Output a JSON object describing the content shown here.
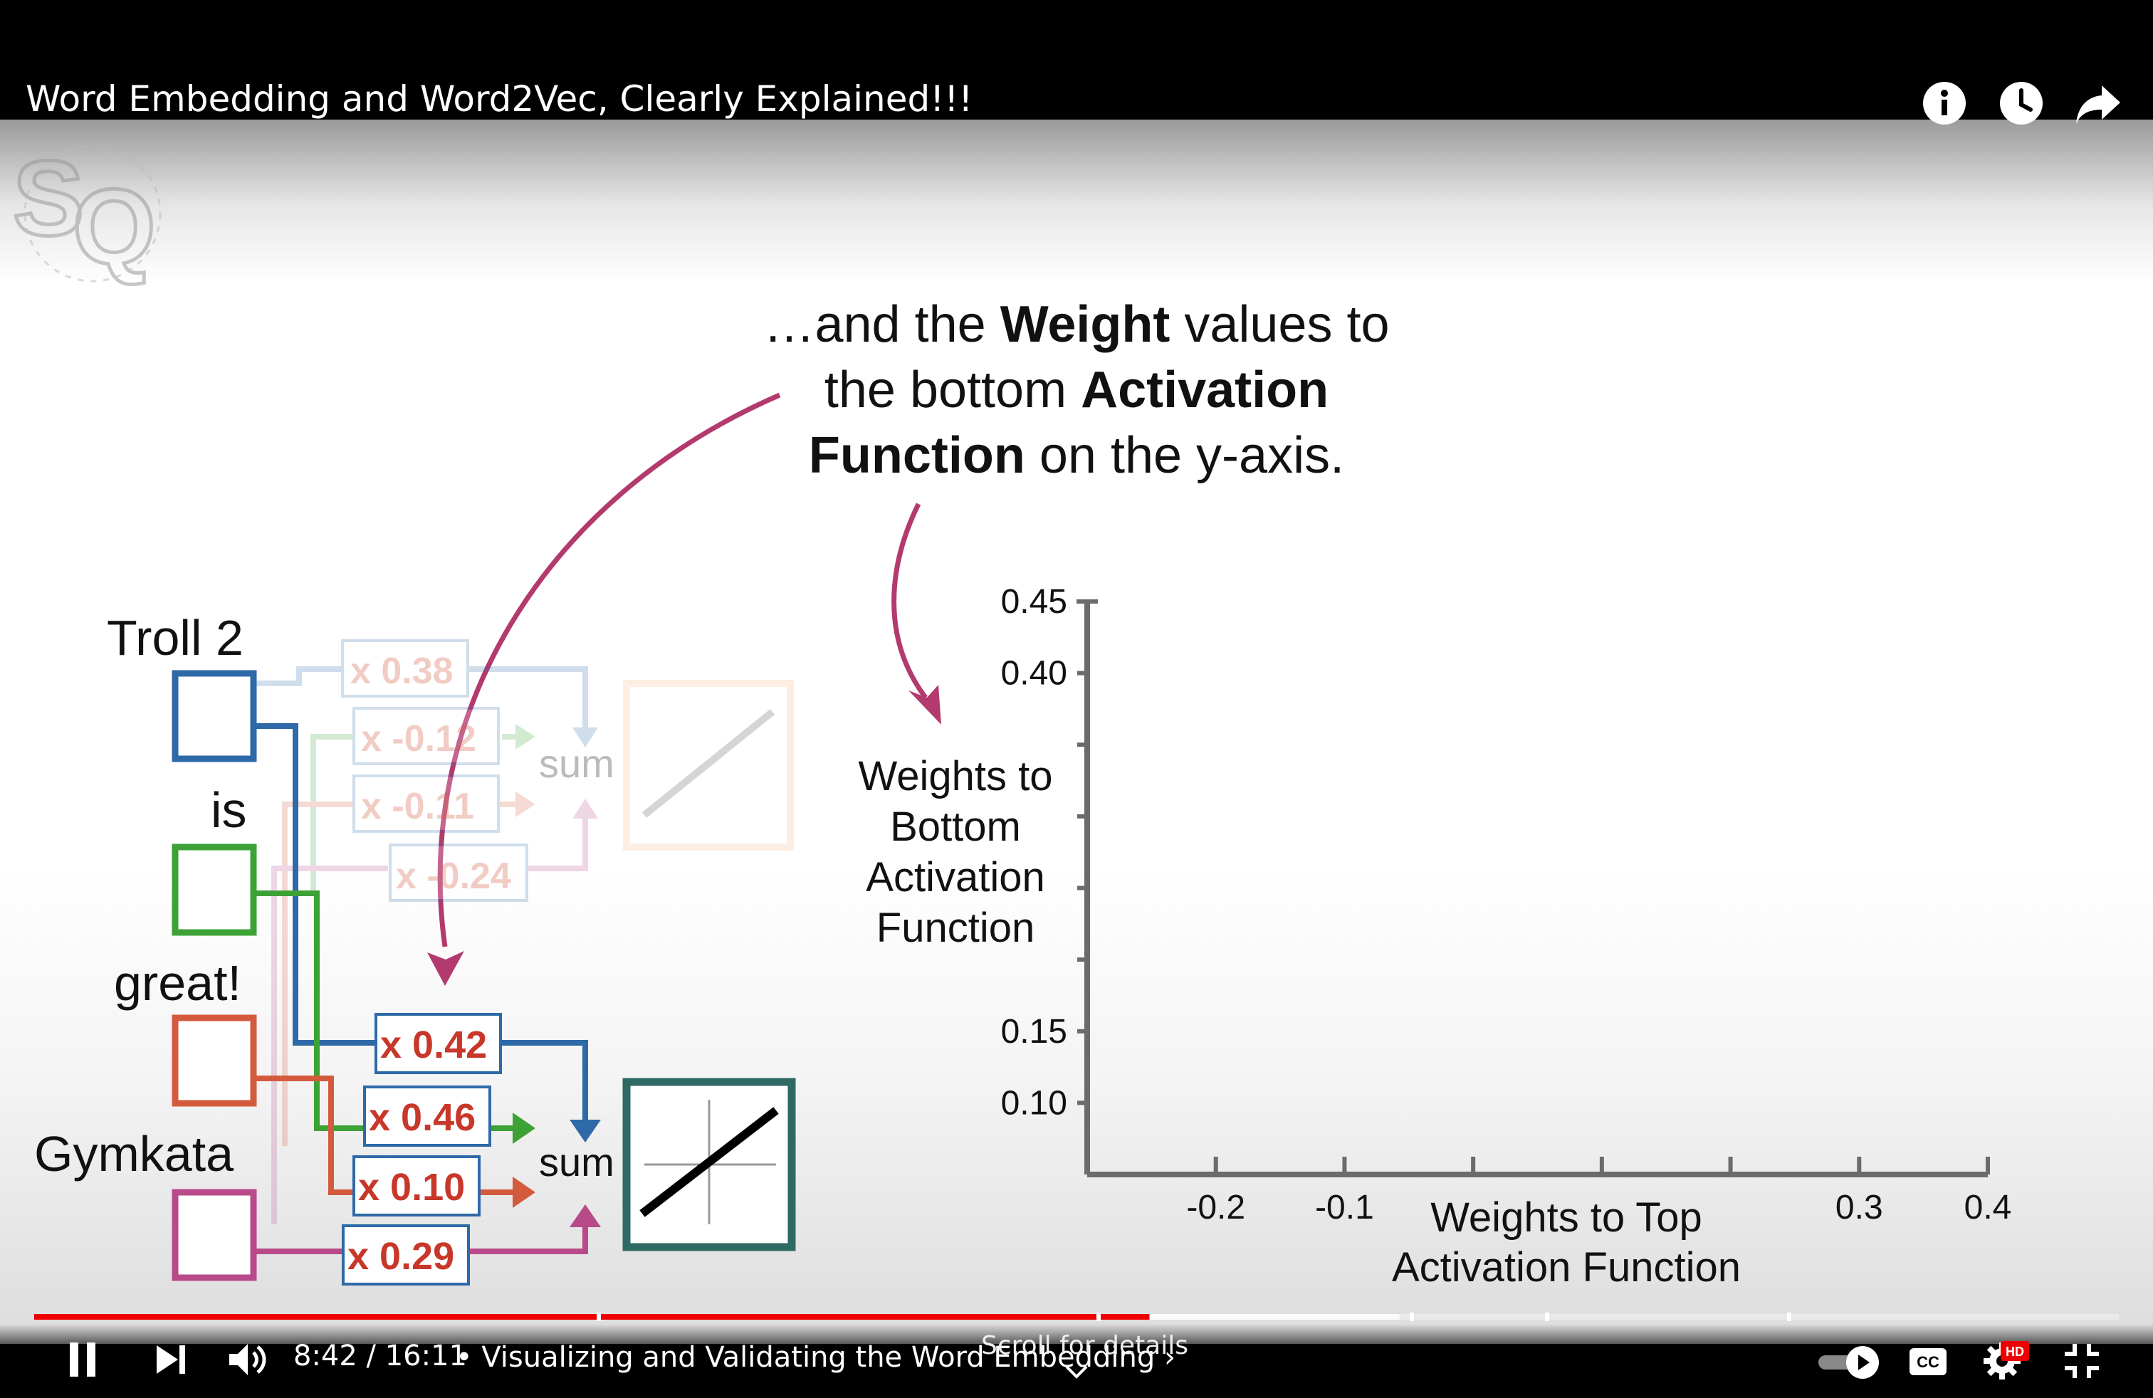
{
  "window": {
    "video_title": "Word Embedding and Word2Vec, Clearly Explained!!!"
  },
  "top_controls": {
    "icons": [
      "info-icon",
      "watch-later-icon",
      "share-icon"
    ]
  },
  "slide": {
    "caption": {
      "line1_pre": "…and the ",
      "line1_bold": "Weight",
      "line1_post": " values to",
      "line2_pre": "the bottom ",
      "line2_bold": "Activation",
      "line3_bold": "Function",
      "line3_post": " on the y-axis."
    },
    "words": [
      "Troll 2",
      "is",
      "great!",
      "Gymkata"
    ],
    "top_weights": [
      "x 0.38",
      "x -0.12",
      "x -0.11",
      "x -0.24"
    ],
    "bottom_weights": [
      "x 0.42",
      "x 0.46",
      "x 0.10",
      "x 0.29"
    ],
    "sum_label": "sum",
    "chart_data": {
      "type": "scatter",
      "ylabel_lines": [
        "Weights to",
        "Bottom",
        "Activation",
        "Function"
      ],
      "xlabel_lines": [
        "Weights to Top",
        "Activation Function"
      ],
      "yticks": [
        "0.45",
        "0.40",
        "0.15",
        "0.10"
      ],
      "xticks": [
        "-0.2",
        "-0.1",
        "0.3",
        "0.4"
      ],
      "points": []
    },
    "colors": {
      "troll2": "#2e69a8",
      "is": "#3da236",
      "great": "#d45a3e",
      "gymkata": "#b84a8a",
      "arrow": "#b33a6e",
      "bottom_plot_frame": "#2e6a63",
      "top_plot_frame": "#f2b483"
    }
  },
  "player": {
    "time": "8:42 / 16:11",
    "chapter": "• Visualizing and Validating the Word Embedding ›",
    "scroll_hint": "Scroll for details",
    "progress": {
      "played": 0.535,
      "buffered": 0.655
    },
    "icons": [
      "pause-icon",
      "next-icon",
      "volume-icon",
      "autoplay-toggle-icon",
      "captions-icon",
      "settings-icon",
      "hd-badge-icon",
      "exit-fullscreen-icon"
    ],
    "hd_badge": "HD",
    "cc_label": "CC"
  }
}
